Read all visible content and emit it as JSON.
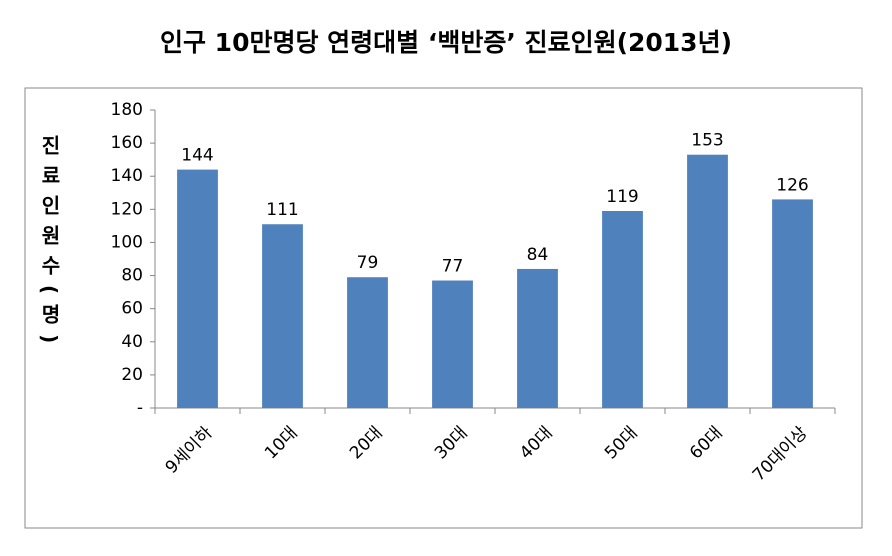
{
  "chart_data": {
    "type": "bar",
    "title": "인구 10만명당 연령대별 ‘백반증’ 진료인원(2013년)",
    "y_label": "진료인원수(명)",
    "categories": [
      "9세이하",
      "10대",
      "20대",
      "30대",
      "40대",
      "50대",
      "60대",
      "70대이상"
    ],
    "values": [
      144,
      111,
      79,
      77,
      84,
      119,
      153,
      126
    ],
    "color": "#4f81bd",
    "ylim": [
      0,
      180
    ],
    "yticks": [
      {
        "value": 0,
        "label": "-"
      },
      20,
      40,
      60,
      80,
      100,
      120,
      140,
      160,
      180
    ],
    "grid": false
  }
}
